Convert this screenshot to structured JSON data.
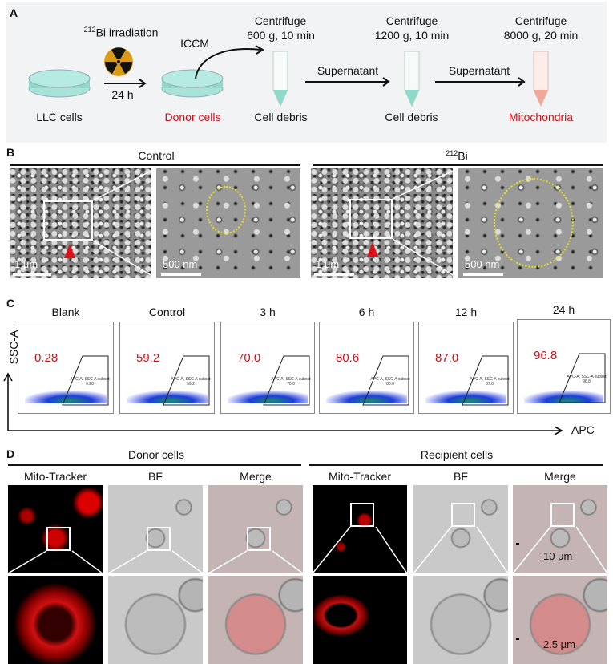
{
  "panel_labels": [
    "A",
    "B",
    "C",
    "D"
  ],
  "colors": {
    "accent_red": "#d0121b",
    "medium": "#7fd6c6",
    "mito_tube": "#f2a79a",
    "gate_yellow": "#e8e020"
  },
  "panel_a": {
    "irradiation_sup": "212",
    "irradiation": "Bi irradiation",
    "radiation_icon": "radiation-trefoil-icon",
    "time": "24 h",
    "iccm": "ICCM",
    "llc": "LLC cells",
    "donor": "Donor cells",
    "steps": [
      {
        "title": "Centrifuge",
        "cond": "600 g, 10 min",
        "label": "Cell debris"
      },
      {
        "title": "Centrifuge",
        "cond": "1200 g, 10 min",
        "label": "Cell debris"
      },
      {
        "title": "Centrifuge",
        "cond": "8000 g, 20 min",
        "label": "Mitochondria"
      }
    ],
    "supernatant": [
      "Supernatant",
      "Supernatant"
    ]
  },
  "panel_b": {
    "groups": [
      {
        "title": "Control"
      },
      {
        "title_sup": "212",
        "title": "Bi"
      }
    ],
    "scale_bars": [
      "1 μm",
      "500 nm",
      "1 μm",
      "500 nm"
    ]
  },
  "panel_c": {
    "y_axis": "SSC-A",
    "x_axis": "APC",
    "gate_label": "APC-A, SSC-A subset",
    "plots": [
      {
        "label": "Blank",
        "value": "0.28"
      },
      {
        "label": "Control",
        "value": "59.2"
      },
      {
        "label": "3 h",
        "value": "70.0"
      },
      {
        "label": "6 h",
        "value": "80.6"
      },
      {
        "label": "12 h",
        "value": "87.0"
      },
      {
        "label": "24 h",
        "value": "96.8"
      }
    ]
  },
  "panel_d": {
    "groups": [
      "Donor cells",
      "Recipient cells"
    ],
    "channels": [
      "Mito-Tracker",
      "BF",
      "Merge",
      "Mito-Tracker",
      "BF",
      "Merge"
    ],
    "scale_bars": [
      "10 μm",
      "2.5 μm"
    ]
  }
}
